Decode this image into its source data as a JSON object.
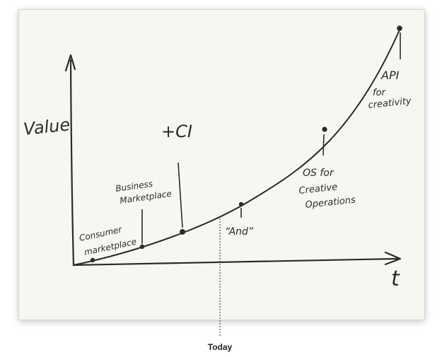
{
  "axes": {
    "y_label": "Value",
    "x_label": "t"
  },
  "annotations": {
    "consumer": [
      "Consumer",
      "marketplace"
    ],
    "business": [
      "Business",
      "Marketplace"
    ],
    "ci": "+CI",
    "and": "“And”",
    "os": [
      "OS for",
      "Creative",
      "Operations"
    ],
    "api": [
      "API",
      "for",
      "creativity"
    ]
  },
  "today_label": "Today",
  "colors": {
    "paper": "#f7f6f1",
    "ink": "#2b2b2b"
  }
}
